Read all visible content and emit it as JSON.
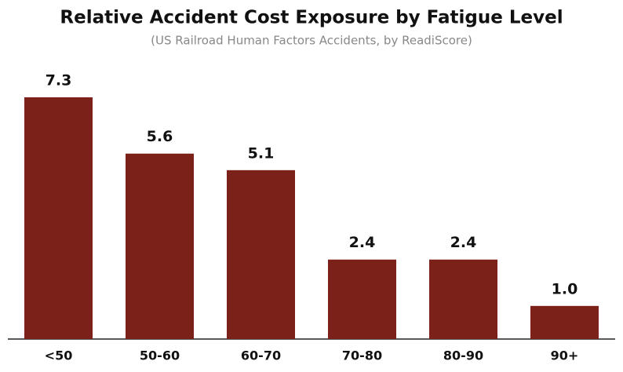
{
  "chart_data": {
    "type": "bar",
    "title": "Relative Accident Cost Exposure by Fatigue Level",
    "subtitle": "(US Railroad Human Factors Accidents, by ReadiScore)",
    "categories": [
      "<50",
      "50-60",
      "60-70",
      "70-80",
      "80-90",
      "90+"
    ],
    "values": [
      7.3,
      5.6,
      5.1,
      2.4,
      2.4,
      1.0
    ],
    "value_labels": [
      "7.3",
      "5.6",
      "5.1",
      "2.4",
      "2.4",
      "1.0"
    ],
    "color": "#7b2119"
  }
}
